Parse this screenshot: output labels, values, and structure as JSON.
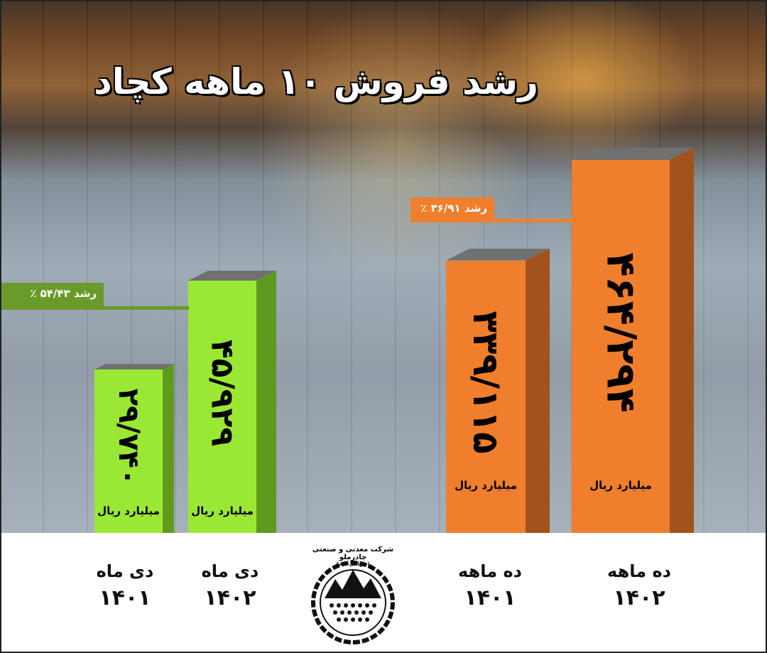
{
  "title": "رشد فروش ۱۰ ماهه کچاد",
  "colors": {
    "green": "#9be834",
    "green_side": "#5e9a1e",
    "orange": "#ef7f2c",
    "orange_side": "#a2531b",
    "growth_green": "#6a9a2a",
    "growth_orange": "#ef7f2c"
  },
  "logo": {
    "text": "شرکت معدنی و صنعتی چادرملو",
    "subtext": "(سهامی عام)"
  },
  "chart_data": {
    "type": "bar",
    "unit": "میلیارد ریال",
    "categories": [
      {
        "period": "دی ماه",
        "year": "۱۴۰۱"
      },
      {
        "period": "دی ماه",
        "year": "۱۴۰۲"
      },
      {
        "period": "ده ماهه",
        "year": "۱۴۰۱"
      },
      {
        "period": "ده ماهه",
        "year": "۱۴۰۲"
      }
    ],
    "values": [
      29740,
      45929,
      339115,
      464294
    ],
    "labels": [
      "۲۹/۷۴۰",
      "۴۵/۹۲۹",
      "۳۳۹/۱۱۵",
      "۴۶۴/۲۹۴"
    ],
    "growth": [
      {
        "label": "رشد ۵۴/۴۳ ٪",
        "value": 54.43,
        "group": "دی ماه"
      },
      {
        "label": "رشد ۳۶/۹۱ ٪",
        "value": 36.91,
        "group": "ده ماهه"
      }
    ]
  }
}
